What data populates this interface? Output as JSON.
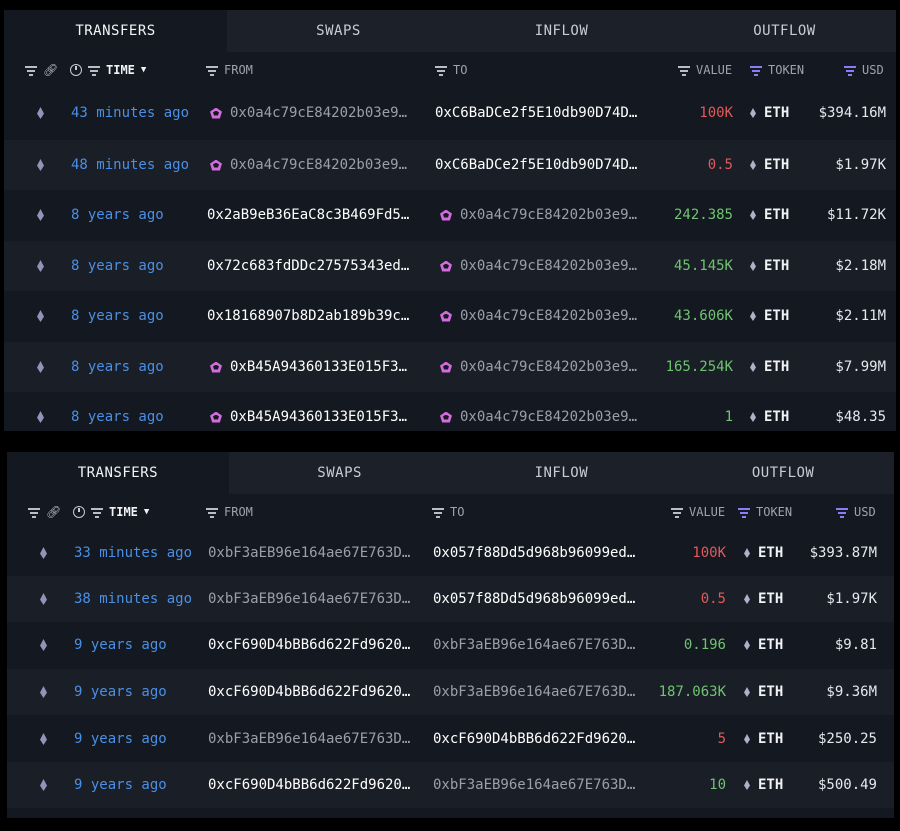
{
  "panels": [
    {
      "tabs": [
        "TRANSFERS",
        "SWAPS",
        "INFLOW",
        "OUTFLOW"
      ],
      "headers": {
        "time": "TIME",
        "from": "FROM",
        "to": "TO",
        "value": "VALUE",
        "token": "TOKEN",
        "usd": "USD"
      },
      "rows": [
        {
          "time": "43 minutes ago",
          "from": "0x0a4c79cE84202b03e9…",
          "to": "0xC6BaDCe2f5E10db90D74D…",
          "value": "100K",
          "token": "ETH",
          "usd": "$394.16M"
        },
        {
          "time": "48 minutes ago",
          "from": "0x0a4c79cE84202b03e9…",
          "to": "0xC6BaDCe2f5E10db90D74D…",
          "value": "0.5",
          "token": "ETH",
          "usd": "$1.97K"
        },
        {
          "time": "8 years ago",
          "from": "0x2aB9eB36EaC8c3B469Fd5…",
          "to": "0x0a4c79cE84202b03e9…",
          "value": "242.385",
          "token": "ETH",
          "usd": "$11.72K"
        },
        {
          "time": "8 years ago",
          "from": "0x72c683fdDDc27575343ed…",
          "to": "0x0a4c79cE84202b03e9…",
          "value": "45.145K",
          "token": "ETH",
          "usd": "$2.18M"
        },
        {
          "time": "8 years ago",
          "from": "0x18168907b8D2ab189b39c…",
          "to": "0x0a4c79cE84202b03e9…",
          "value": "43.606K",
          "token": "ETH",
          "usd": "$2.11M"
        },
        {
          "time": "8 years ago",
          "from": "0xB45A94360133E015F3…",
          "to": "0x0a4c79cE84202b03e9…",
          "value": "165.254K",
          "token": "ETH",
          "usd": "$7.99M"
        },
        {
          "time": "8 years ago",
          "from": "0xB45A94360133E015F3…",
          "to": "0x0a4c79cE84202b03e9…",
          "value": "1",
          "token": "ETH",
          "usd": "$48.35"
        }
      ]
    },
    {
      "tabs": [
        "TRANSFERS",
        "SWAPS",
        "INFLOW",
        "OUTFLOW"
      ],
      "headers": {
        "time": "TIME",
        "from": "FROM",
        "to": "TO",
        "value": "VALUE",
        "token": "TOKEN",
        "usd": "USD"
      },
      "rows": [
        {
          "time": "33 minutes ago",
          "from": "0xbF3aEB96e164ae67E763D…",
          "to": "0x057f88Dd5d968b96099ed…",
          "value": "100K",
          "token": "ETH",
          "usd": "$393.87M"
        },
        {
          "time": "38 minutes ago",
          "from": "0xbF3aEB96e164ae67E763D…",
          "to": "0x057f88Dd5d968b96099ed…",
          "value": "0.5",
          "token": "ETH",
          "usd": "$1.97K"
        },
        {
          "time": "9 years ago",
          "from": "0xcF690D4bBB6d622Fd9620…",
          "to": "0xbF3aEB96e164ae67E763D…",
          "value": "0.196",
          "token": "ETH",
          "usd": "$9.81"
        },
        {
          "time": "9 years ago",
          "from": "0xcF690D4bBB6d622Fd9620…",
          "to": "0xbF3aEB96e164ae67E763D…",
          "value": "187.063K",
          "token": "ETH",
          "usd": "$9.36M"
        },
        {
          "time": "9 years ago",
          "from": "0xbF3aEB96e164ae67E763D…",
          "to": "0xcF690D4bBB6d622Fd9620…",
          "value": "5",
          "token": "ETH",
          "usd": "$250.25"
        },
        {
          "time": "9 years ago",
          "from": "0xcF690D4bBB6d622Fd9620…",
          "to": "0xbF3aEB96e164ae67E763D…",
          "value": "10",
          "token": "ETH",
          "usd": "$500.49"
        }
      ]
    }
  ],
  "colors": {
    "outflow_value": "#e05a5a",
    "inflow_value": "#6fc46f",
    "time_link": "#4b8fe4",
    "entity_icon": "#d36bdf",
    "background": "#141820"
  },
  "icons": {
    "filter": "filter-icon",
    "link": "link-icon",
    "clock": "clock-icon",
    "sort": "caret-down-icon",
    "chain": "ethereum-icon",
    "entity": "entity-pentagon-icon",
    "token": "eth-token-icon"
  }
}
